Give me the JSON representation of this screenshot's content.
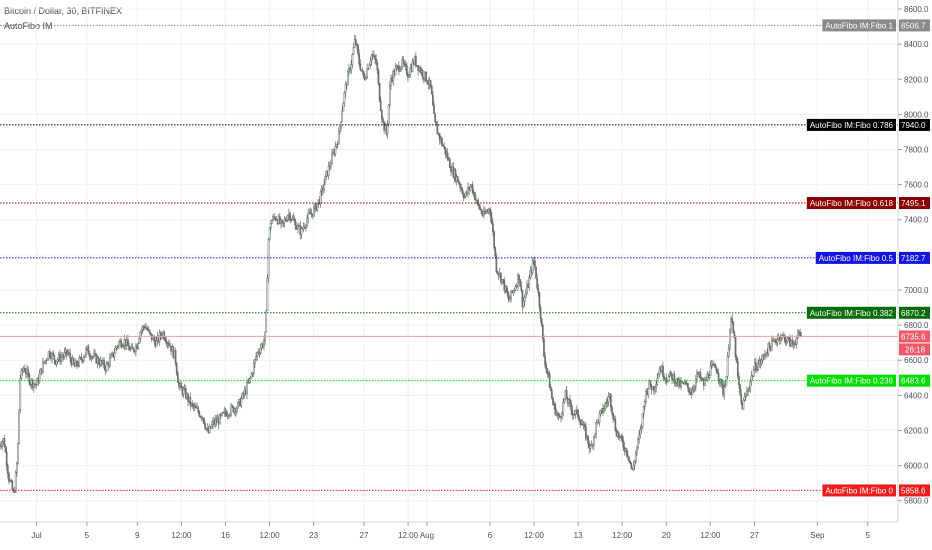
{
  "header": {
    "symbol_line": "Bitcoin / Dollar, 30, BITFINEX",
    "indicator_line": "AutoFibo IM"
  },
  "colors": {
    "candle_up": "#5a6b5a",
    "candle_down": "#6e6e6e",
    "grid": "#eef0f4",
    "price_line": "#e8a0a8",
    "price_badge": "#ef5a6a"
  },
  "chart_data": {
    "type": "candlestick",
    "ylim": [
      5750,
      8620
    ],
    "y_ticks": [
      5800,
      6000,
      6200,
      6400,
      6600,
      6800,
      7000,
      7200,
      7400,
      7600,
      7800,
      8000,
      8200,
      8400,
      8600
    ],
    "y_tick_labels": [
      "5800.0",
      "6000.0",
      "6200.0",
      "6400.0",
      "6600.0",
      "6800.0",
      "7000.0",
      "7200.0",
      "7400.0",
      "7600.0",
      "7800.0",
      "8000.0",
      "8200.0",
      "8400.0",
      "8600.0"
    ],
    "x_ticks": [
      {
        "label": "Jul",
        "pos": 0.0
      },
      {
        "label": "5",
        "pos": 4.0
      },
      {
        "label": "9",
        "pos": 8.0
      },
      {
        "label": "12:00",
        "pos": 11.5
      },
      {
        "label": "16",
        "pos": 15.0
      },
      {
        "label": "12:00",
        "pos": 18.5
      },
      {
        "label": "23",
        "pos": 22.0
      },
      {
        "label": "27",
        "pos": 26.0
      },
      {
        "label": "12:00",
        "pos": 29.5
      },
      {
        "label": "Aug",
        "pos": 31.0
      },
      {
        "label": "6",
        "pos": 36.0
      },
      {
        "label": "12:00",
        "pos": 39.5
      },
      {
        "label": "13",
        "pos": 43.0
      },
      {
        "label": "12:00",
        "pos": 46.5
      },
      {
        "label": "20",
        "pos": 50.0
      },
      {
        "label": "12:00",
        "pos": 53.5
      },
      {
        "label": "27",
        "pos": 57.0
      },
      {
        "label": "Sep",
        "pos": 62.0
      },
      {
        "label": "5",
        "pos": 66.0
      }
    ],
    "x_range": [
      -2.9,
      68.4
    ],
    "price_path": [
      [
        -3.0,
        6120
      ],
      [
        -2.6,
        6150
      ],
      [
        -2.2,
        5930
      ],
      [
        -1.8,
        5830
      ],
      [
        -1.5,
        6050
      ],
      [
        -1.3,
        6500
      ],
      [
        -1.0,
        6560
      ],
      [
        -0.5,
        6480
      ],
      [
        0.0,
        6460
      ],
      [
        0.5,
        6570
      ],
      [
        1.0,
        6650
      ],
      [
        1.5,
        6600
      ],
      [
        2.0,
        6620
      ],
      [
        2.5,
        6640
      ],
      [
        3.0,
        6560
      ],
      [
        3.5,
        6600
      ],
      [
        4.0,
        6660
      ],
      [
        4.5,
        6620
      ],
      [
        5.0,
        6590
      ],
      [
        5.5,
        6560
      ],
      [
        6.0,
        6620
      ],
      [
        6.5,
        6700
      ],
      [
        7.0,
        6710
      ],
      [
        7.5,
        6650
      ],
      [
        8.0,
        6690
      ],
      [
        8.2,
        6760
      ],
      [
        8.6,
        6800
      ],
      [
        9.0,
        6740
      ],
      [
        9.5,
        6700
      ],
      [
        10.0,
        6760
      ],
      [
        10.5,
        6700
      ],
      [
        11.0,
        6620
      ],
      [
        11.3,
        6450
      ],
      [
        11.8,
        6410
      ],
      [
        12.3,
        6340
      ],
      [
        12.8,
        6310
      ],
      [
        13.2,
        6280
      ],
      [
        13.6,
        6180
      ],
      [
        14.0,
        6240
      ],
      [
        14.5,
        6260
      ],
      [
        15.0,
        6300
      ],
      [
        15.5,
        6320
      ],
      [
        16.0,
        6340
      ],
      [
        16.5,
        6410
      ],
      [
        17.0,
        6500
      ],
      [
        17.5,
        6640
      ],
      [
        18.0,
        6700
      ],
      [
        18.2,
        6750
      ],
      [
        18.4,
        7280
      ],
      [
        18.6,
        7390
      ],
      [
        19.0,
        7420
      ],
      [
        19.5,
        7360
      ],
      [
        20.0,
        7440
      ],
      [
        20.5,
        7380
      ],
      [
        21.0,
        7330
      ],
      [
        21.5,
        7410
      ],
      [
        22.0,
        7450
      ],
      [
        22.5,
        7520
      ],
      [
        23.0,
        7650
      ],
      [
        23.5,
        7760
      ],
      [
        24.0,
        7880
      ],
      [
        24.3,
        8050
      ],
      [
        24.6,
        8180
      ],
      [
        25.0,
        8300
      ],
      [
        25.3,
        8430
      ],
      [
        25.6,
        8300
      ],
      [
        26.0,
        8200
      ],
      [
        26.3,
        8270
      ],
      [
        26.6,
        8340
      ],
      [
        27.0,
        8290
      ],
      [
        27.2,
        8120
      ],
      [
        27.5,
        7950
      ],
      [
        27.8,
        7890
      ],
      [
        28.1,
        8200
      ],
      [
        28.5,
        8250
      ],
      [
        29.0,
        8290
      ],
      [
        29.5,
        8230
      ],
      [
        30.0,
        8310
      ],
      [
        30.5,
        8250
      ],
      [
        31.0,
        8200
      ],
      [
        31.3,
        8150
      ],
      [
        31.6,
        7950
      ],
      [
        32.0,
        7870
      ],
      [
        32.5,
        7780
      ],
      [
        33.0,
        7680
      ],
      [
        33.5,
        7620
      ],
      [
        34.0,
        7530
      ],
      [
        34.5,
        7600
      ],
      [
        35.0,
        7490
      ],
      [
        35.5,
        7420
      ],
      [
        36.0,
        7470
      ],
      [
        36.2,
        7350
      ],
      [
        36.5,
        7130
      ],
      [
        37.0,
        7050
      ],
      [
        37.5,
        6940
      ],
      [
        38.0,
        7020
      ],
      [
        38.3,
        7090
      ],
      [
        38.6,
        6920
      ],
      [
        39.0,
        7020
      ],
      [
        39.3,
        7120
      ],
      [
        39.5,
        7170
      ],
      [
        39.8,
        7000
      ],
      [
        40.0,
        6880
      ],
      [
        40.3,
        6620
      ],
      [
        40.7,
        6480
      ],
      [
        41.0,
        6350
      ],
      [
        41.5,
        6260
      ],
      [
        42.0,
        6400
      ],
      [
        42.5,
        6310
      ],
      [
        43.0,
        6290
      ],
      [
        43.5,
        6200
      ],
      [
        44.0,
        6090
      ],
      [
        44.5,
        6250
      ],
      [
        45.0,
        6320
      ],
      [
        45.5,
        6400
      ],
      [
        46.0,
        6200
      ],
      [
        46.5,
        6130
      ],
      [
        47.0,
        6060
      ],
      [
        47.3,
        5960
      ],
      [
        47.6,
        6080
      ],
      [
        48.0,
        6210
      ],
      [
        48.3,
        6390
      ],
      [
        48.6,
        6460
      ],
      [
        49.0,
        6440
      ],
      [
        49.5,
        6560
      ],
      [
        50.0,
        6500
      ],
      [
        50.5,
        6510
      ],
      [
        51.0,
        6460
      ],
      [
        51.5,
        6460
      ],
      [
        52.0,
        6420
      ],
      [
        52.5,
        6520
      ],
      [
        53.0,
        6460
      ],
      [
        53.5,
        6550
      ],
      [
        54.0,
        6560
      ],
      [
        54.5,
        6420
      ],
      [
        54.8,
        6520
      ],
      [
        55.1,
        6850
      ],
      [
        55.4,
        6720
      ],
      [
        55.7,
        6480
      ],
      [
        56.0,
        6330
      ],
      [
        56.5,
        6440
      ],
      [
        57.0,
        6560
      ],
      [
        57.5,
        6590
      ],
      [
        58.0,
        6660
      ],
      [
        58.5,
        6700
      ],
      [
        59.0,
        6740
      ],
      [
        59.5,
        6720
      ],
      [
        60.0,
        6690
      ],
      [
        60.5,
        6740
      ],
      [
        60.8,
        6736
      ]
    ],
    "fibo_levels": [
      {
        "label": "AutoFibo IM:Fibo 1",
        "ratio": "1",
        "value": 8506.7,
        "value_label": "8506.7",
        "color": "#8a8a8a"
      },
      {
        "label": "AutoFibo IM:Fibo 0.786",
        "ratio": "0.786",
        "value": 7940.0,
        "value_label": "7940.0",
        "color": "#000000"
      },
      {
        "label": "AutoFibo IM:Fibo 0.618",
        "ratio": "0.618",
        "value": 7495.1,
        "value_label": "7495.1",
        "color": "#8b0000"
      },
      {
        "label": "AutoFibo IM:Fibo 0.5",
        "ratio": "0.5",
        "value": 7182.7,
        "value_label": "7182.7",
        "color": "#1515e0"
      },
      {
        "label": "AutoFibo IM:Fibo 0.382",
        "ratio": "0.382",
        "value": 6870.2,
        "value_label": "6870.2",
        "color": "#0a6b0a"
      },
      {
        "label": "AutoFibo IM:Fibo 0.236",
        "ratio": "0.236",
        "value": 6483.6,
        "value_label": "6483.6",
        "color": "#00dd00"
      },
      {
        "label": "AutoFibo IM:Fibo 0",
        "ratio": "0",
        "value": 5858.6,
        "value_label": "5858.6",
        "color": "#ee1c1c"
      }
    ],
    "last_price": {
      "value": 6735.6,
      "label": "6735.6",
      "countdown": "26:18"
    }
  }
}
